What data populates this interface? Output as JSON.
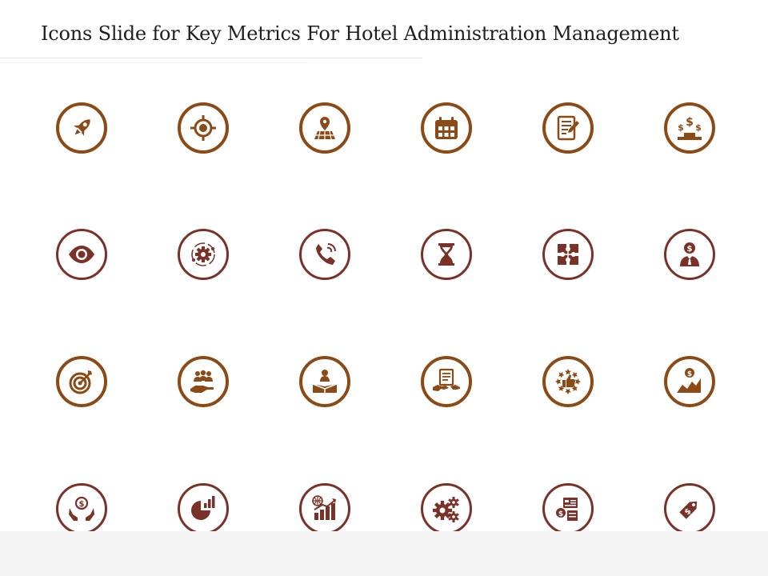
{
  "title": "Icons Slide for Key Metrics For Hotel Administration Management",
  "colors": {
    "brown": "#8B4A16",
    "maroon": "#7A3128"
  },
  "rows": [
    [
      "rocket-icon",
      "target-crosshair-icon",
      "map-pin-icon",
      "calendar-icon",
      "document-edit-icon",
      "dollar-podium-icon"
    ],
    [
      "eye-icon",
      "gear-orbit-icon",
      "phone-icon",
      "hourglass-icon",
      "puzzle-icon",
      "businessman-dollar-icon"
    ],
    [
      "bullseye-arrow-icon",
      "team-hand-icon",
      "leader-podium-icon",
      "contract-handshake-icon",
      "thumbs-up-stars-icon",
      "dollar-growth-mountain-icon"
    ],
    [
      "hands-dollar-icon",
      "pie-chart-bars-icon",
      "global-growth-chart-icon",
      "gears-icon",
      "money-transfer-icon",
      "price-tag-icon"
    ]
  ]
}
